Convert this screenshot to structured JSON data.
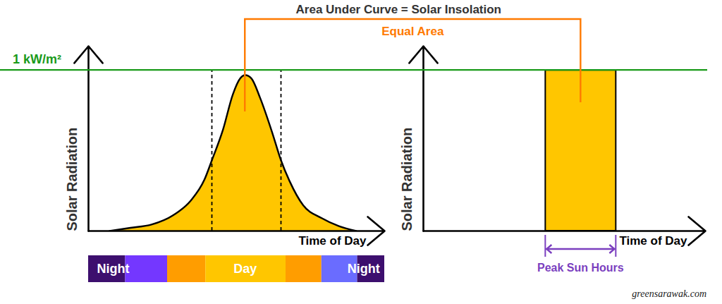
{
  "credit": "greensarawak.com",
  "chart_data": [
    {
      "type": "area",
      "title": "Area Under Curve = Solar Insolation",
      "annotation": "Equal Area",
      "x_label": "Time of Day",
      "y_label": "Solar Radiation",
      "x": [
        1.7,
        3.4,
        5.1,
        6.9,
        8.3,
        9.4,
        10.0,
        10.9,
        11.7,
        12.3,
        12.7,
        13.2,
        13.9,
        14.9,
        15.6,
        16.3,
        17.4,
        18.9,
        20.3,
        21.7
      ],
      "values": [
        0,
        0.02,
        0.04,
        0.1,
        0.19,
        0.32,
        0.44,
        0.63,
        0.85,
        0.95,
        0.97,
        0.95,
        0.83,
        0.61,
        0.44,
        0.31,
        0.16,
        0.08,
        0.03,
        0
      ],
      "color": "#ffc600",
      "xlim": [
        0,
        24
      ],
      "ylim": [
        0,
        1.15
      ],
      "xticks": [],
      "yticks": [],
      "tick_labels": false,
      "reference_line": {
        "value": 1,
        "label": "1 kW/m²",
        "color": "#1a9a1a"
      },
      "peak_window": [
        10.0,
        15.6
      ],
      "day_bar": {
        "segments": [
          {
            "start": 0,
            "end": 3.0,
            "color": "#3d0f6e"
          },
          {
            "start": 3.0,
            "end": 6.4,
            "color": "#7437ff"
          },
          {
            "start": 6.4,
            "end": 9.5,
            "color": "#ff9d00"
          },
          {
            "start": 9.5,
            "end": 16.0,
            "color": "#ffc600"
          },
          {
            "start": 16.0,
            "end": 18.9,
            "color": "#ff9d00"
          },
          {
            "start": 18.9,
            "end": 21.8,
            "color": "#6a6cff"
          },
          {
            "start": 21.8,
            "end": 24,
            "color": "#3d0f6e"
          }
        ],
        "labels": [
          {
            "label": "Night",
            "x": 2.0
          },
          {
            "label": "Day",
            "x": 12.7
          },
          {
            "label": "Night",
            "x": 22.3
          }
        ]
      }
    },
    {
      "type": "bar",
      "x_label": "Time of Day",
      "y_label": "Solar Radiation",
      "span": {
        "start": 10.4,
        "end": 16.4,
        "label": "Peak Sun Hours",
        "color": "#7b3fbf"
      },
      "values": [
        1
      ],
      "color": "#ffc600",
      "xlim": [
        0,
        24
      ],
      "ylim": [
        0,
        1.15
      ],
      "xticks": [],
      "yticks": [],
      "tick_labels": false
    }
  ]
}
